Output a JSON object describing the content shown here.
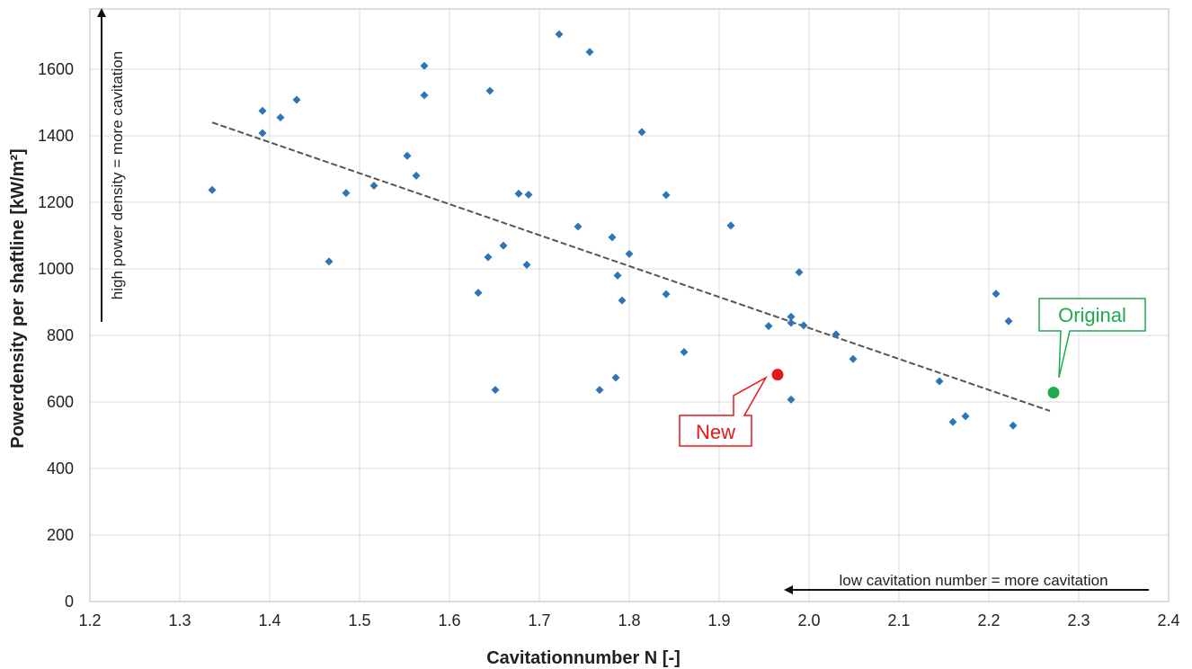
{
  "chart_data": {
    "type": "scatter",
    "title": "",
    "xlabel": "Cavitationnumber N [-]",
    "ylabel": "Powerdensity per shaftline [kW/m²]",
    "xlim": [
      1.2,
      2.4
    ],
    "ylim": [
      0,
      1750
    ],
    "x_ticks": [
      "1.2",
      "1.3",
      "1.4",
      "1.5",
      "1.6",
      "1.7",
      "1.8",
      "1.9",
      "2.0",
      "2.1",
      "2.2",
      "2.3",
      "2.4"
    ],
    "y_ticks": [
      "0",
      "200",
      "400",
      "600",
      "800",
      "1000",
      "1200",
      "1400",
      "1600"
    ],
    "grid": true,
    "legend": "none",
    "series": [
      {
        "color": "#2E75B6",
        "marker": "diamond",
        "points": [
          {
            "x": 1.336,
            "y": 1237
          },
          {
            "x": 1.392,
            "y": 1475
          },
          {
            "x": 1.392,
            "y": 1408
          },
          {
            "x": 1.412,
            "y": 1455
          },
          {
            "x": 1.43,
            "y": 1508
          },
          {
            "x": 1.466,
            "y": 1022
          },
          {
            "x": 1.485,
            "y": 1228
          },
          {
            "x": 1.516,
            "y": 1250
          },
          {
            "x": 1.553,
            "y": 1340
          },
          {
            "x": 1.563,
            "y": 1280
          },
          {
            "x": 1.572,
            "y": 1610
          },
          {
            "x": 1.572,
            "y": 1522
          },
          {
            "x": 1.632,
            "y": 928
          },
          {
            "x": 1.643,
            "y": 1035
          },
          {
            "x": 1.645,
            "y": 1535
          },
          {
            "x": 1.651,
            "y": 636
          },
          {
            "x": 1.66,
            "y": 1070
          },
          {
            "x": 1.677,
            "y": 1226
          },
          {
            "x": 1.686,
            "y": 1012
          },
          {
            "x": 1.688,
            "y": 1223
          },
          {
            "x": 1.722,
            "y": 1705
          },
          {
            "x": 1.743,
            "y": 1127
          },
          {
            "x": 1.756,
            "y": 1652
          },
          {
            "x": 1.767,
            "y": 636
          },
          {
            "x": 1.781,
            "y": 1095
          },
          {
            "x": 1.785,
            "y": 673
          },
          {
            "x": 1.787,
            "y": 980
          },
          {
            "x": 1.792,
            "y": 905
          },
          {
            "x": 1.8,
            "y": 1045
          },
          {
            "x": 1.814,
            "y": 1411
          },
          {
            "x": 1.841,
            "y": 1222
          },
          {
            "x": 1.841,
            "y": 924
          },
          {
            "x": 1.861,
            "y": 750
          },
          {
            "x": 1.913,
            "y": 1130
          },
          {
            "x": 1.955,
            "y": 828
          },
          {
            "x": 1.98,
            "y": 856
          },
          {
            "x": 1.98,
            "y": 838
          },
          {
            "x": 1.98,
            "y": 607
          },
          {
            "x": 1.989,
            "y": 990
          },
          {
            "x": 1.994,
            "y": 830
          },
          {
            "x": 2.03,
            "y": 803
          },
          {
            "x": 2.049,
            "y": 729
          },
          {
            "x": 2.145,
            "y": 662
          },
          {
            "x": 2.16,
            "y": 540
          },
          {
            "x": 2.174,
            "y": 557
          },
          {
            "x": 2.208,
            "y": 925
          },
          {
            "x": 2.222,
            "y": 843
          },
          {
            "x": 2.227,
            "y": 529
          }
        ]
      }
    ],
    "trendline": {
      "style": "dashed",
      "color": "#555555",
      "points": [
        {
          "x": 1.336,
          "y": 1440
        },
        {
          "x": 2.268,
          "y": 573
        }
      ]
    },
    "highlights": [
      {
        "label": "New",
        "x": 1.965,
        "y": 682,
        "color": "#E8151B",
        "border_color": "#E8151B"
      },
      {
        "label": "Original",
        "x": 2.272,
        "y": 628,
        "color": "#1EAA4E",
        "border_color": "#1EAA4E"
      }
    ],
    "annotations": {
      "vertical": "high power density = more cavitation",
      "horizontal": "low cavitation number = more cavitation"
    }
  }
}
